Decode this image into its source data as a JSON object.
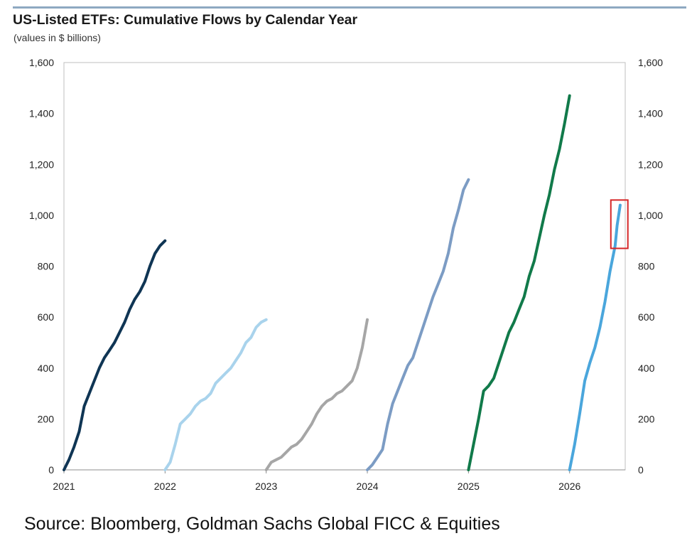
{
  "chart_data": {
    "type": "line",
    "title": "US-Listed ETFs: Cumulative Flows by Calendar Year",
    "subtitle": "(values in $ billions)",
    "xlim": [
      2021,
      2026.55
    ],
    "x_ticks": [
      "2021",
      "2022",
      "2023",
      "2024",
      "2025",
      "2026"
    ],
    "ylim": [
      0,
      1600
    ],
    "y_ticks": [
      0,
      200,
      400,
      600,
      800,
      1000,
      1200,
      1400,
      1600
    ],
    "y_tick_labels": [
      "0",
      "200",
      "400",
      "600",
      "800",
      "1,000",
      "1,200",
      "1,400",
      "1,600"
    ],
    "grid": false,
    "legend": "none",
    "series": [
      {
        "color": "#0f3554",
        "points": [
          [
            2021.0,
            0
          ],
          [
            2021.05,
            40
          ],
          [
            2021.1,
            90
          ],
          [
            2021.15,
            150
          ],
          [
            2021.2,
            250
          ],
          [
            2021.25,
            300
          ],
          [
            2021.3,
            350
          ],
          [
            2021.35,
            400
          ],
          [
            2021.4,
            440
          ],
          [
            2021.45,
            470
          ],
          [
            2021.5,
            500
          ],
          [
            2021.55,
            540
          ],
          [
            2021.6,
            580
          ],
          [
            2021.65,
            630
          ],
          [
            2021.7,
            670
          ],
          [
            2021.75,
            700
          ],
          [
            2021.8,
            740
          ],
          [
            2021.85,
            800
          ],
          [
            2021.9,
            850
          ],
          [
            2021.95,
            880
          ],
          [
            2022.0,
            900
          ]
        ]
      },
      {
        "color": "#a9d3ec",
        "points": [
          [
            2022.0,
            0
          ],
          [
            2022.05,
            30
          ],
          [
            2022.1,
            100
          ],
          [
            2022.15,
            180
          ],
          [
            2022.2,
            200
          ],
          [
            2022.25,
            220
          ],
          [
            2022.3,
            250
          ],
          [
            2022.35,
            270
          ],
          [
            2022.4,
            280
          ],
          [
            2022.45,
            300
          ],
          [
            2022.5,
            340
          ],
          [
            2022.55,
            360
          ],
          [
            2022.6,
            380
          ],
          [
            2022.65,
            400
          ],
          [
            2022.7,
            430
          ],
          [
            2022.75,
            460
          ],
          [
            2022.8,
            500
          ],
          [
            2022.85,
            520
          ],
          [
            2022.9,
            560
          ],
          [
            2022.95,
            580
          ],
          [
            2023.0,
            590
          ]
        ]
      },
      {
        "color": "#a6a6a6",
        "points": [
          [
            2023.0,
            0
          ],
          [
            2023.05,
            30
          ],
          [
            2023.1,
            40
          ],
          [
            2023.15,
            50
          ],
          [
            2023.2,
            70
          ],
          [
            2023.25,
            90
          ],
          [
            2023.3,
            100
          ],
          [
            2023.35,
            120
          ],
          [
            2023.4,
            150
          ],
          [
            2023.45,
            180
          ],
          [
            2023.5,
            220
          ],
          [
            2023.55,
            250
          ],
          [
            2023.6,
            270
          ],
          [
            2023.65,
            280
          ],
          [
            2023.7,
            300
          ],
          [
            2023.75,
            310
          ],
          [
            2023.8,
            330
          ],
          [
            2023.85,
            350
          ],
          [
            2023.9,
            400
          ],
          [
            2023.95,
            480
          ],
          [
            2024.0,
            590
          ]
        ]
      },
      {
        "color": "#7c9cc4",
        "points": [
          [
            2024.0,
            0
          ],
          [
            2024.05,
            20
          ],
          [
            2024.1,
            50
          ],
          [
            2024.15,
            80
          ],
          [
            2024.2,
            180
          ],
          [
            2024.25,
            260
          ],
          [
            2024.3,
            310
          ],
          [
            2024.35,
            360
          ],
          [
            2024.4,
            410
          ],
          [
            2024.45,
            440
          ],
          [
            2024.5,
            500
          ],
          [
            2024.55,
            560
          ],
          [
            2024.6,
            620
          ],
          [
            2024.65,
            680
          ],
          [
            2024.7,
            730
          ],
          [
            2024.75,
            780
          ],
          [
            2024.8,
            850
          ],
          [
            2024.85,
            950
          ],
          [
            2024.9,
            1020
          ],
          [
            2024.95,
            1100
          ],
          [
            2025.0,
            1140
          ]
        ]
      },
      {
        "color": "#117a4a",
        "points": [
          [
            2025.0,
            0
          ],
          [
            2025.05,
            100
          ],
          [
            2025.1,
            200
          ],
          [
            2025.15,
            310
          ],
          [
            2025.2,
            330
          ],
          [
            2025.25,
            360
          ],
          [
            2025.3,
            420
          ],
          [
            2025.35,
            480
          ],
          [
            2025.4,
            540
          ],
          [
            2025.45,
            580
          ],
          [
            2025.5,
            630
          ],
          [
            2025.55,
            680
          ],
          [
            2025.6,
            760
          ],
          [
            2025.65,
            820
          ],
          [
            2025.7,
            910
          ],
          [
            2025.75,
            1000
          ],
          [
            2025.8,
            1080
          ],
          [
            2025.85,
            1180
          ],
          [
            2025.9,
            1260
          ],
          [
            2025.95,
            1360
          ],
          [
            2026.0,
            1470
          ]
        ]
      },
      {
        "color": "#4aa6dc",
        "points": [
          [
            2026.0,
            0
          ],
          [
            2026.05,
            100
          ],
          [
            2026.1,
            220
          ],
          [
            2026.15,
            350
          ],
          [
            2026.2,
            420
          ],
          [
            2026.25,
            480
          ],
          [
            2026.3,
            560
          ],
          [
            2026.35,
            660
          ],
          [
            2026.4,
            780
          ],
          [
            2026.45,
            880
          ],
          [
            2026.47,
            960
          ],
          [
            2026.5,
            1040
          ]
        ]
      }
    ],
    "highlight": {
      "x_range": [
        2026.45,
        2026.52
      ],
      "y_range": [
        870,
        1060
      ],
      "color": "#d62728"
    }
  },
  "source": "Source: Bloomberg, Goldman Sachs Global FICC & Equities"
}
